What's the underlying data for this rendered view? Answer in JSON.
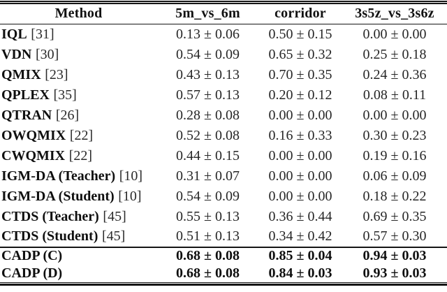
{
  "colors": {
    "background": "#ffffff",
    "text": "#111111",
    "rule": "#151515"
  },
  "table": {
    "columns": [
      "Method",
      "5m_vs_6m",
      "corridor",
      "3s5z_vs_3s6z"
    ],
    "rows": [
      {
        "method": "IQL",
        "cite": "[31]",
        "values": [
          "0.13 ± 0.06",
          "0.50 ± 0.15",
          "0.00 ± 0.00"
        ],
        "bold": false,
        "rule_above": false
      },
      {
        "method": "VDN",
        "cite": "[30]",
        "values": [
          "0.54 ± 0.09",
          "0.65 ± 0.32",
          "0.25 ± 0.18"
        ],
        "bold": false,
        "rule_above": false
      },
      {
        "method": "QMIX",
        "cite": "[23]",
        "values": [
          "0.43 ± 0.13",
          "0.70 ± 0.35",
          "0.24 ± 0.36"
        ],
        "bold": false,
        "rule_above": false
      },
      {
        "method": "QPLEX",
        "cite": "[35]",
        "values": [
          "0.57 ± 0.13",
          "0.20 ± 0.12",
          "0.08 ± 0.11"
        ],
        "bold": false,
        "rule_above": false
      },
      {
        "method": "QTRAN",
        "cite": "[26]",
        "values": [
          "0.28 ± 0.08",
          "0.00 ± 0.00",
          "0.00 ± 0.00"
        ],
        "bold": false,
        "rule_above": false
      },
      {
        "method": "OWQMIX",
        "cite": "[22]",
        "values": [
          "0.52 ± 0.08",
          "0.16 ± 0.33",
          "0.30 ± 0.23"
        ],
        "bold": false,
        "rule_above": false
      },
      {
        "method": "CWQMIX",
        "cite": "[22]",
        "values": [
          "0.44 ± 0.15",
          "0.00 ± 0.00",
          "0.19 ± 0.16"
        ],
        "bold": false,
        "rule_above": false
      },
      {
        "method": "IGM-DA (Teacher)",
        "cite": "[10]",
        "values": [
          "0.31 ± 0.07",
          "0.00 ± 0.00",
          "0.06 ± 0.09"
        ],
        "bold": false,
        "rule_above": false
      },
      {
        "method": "IGM-DA (Student)",
        "cite": "[10]",
        "values": [
          "0.54 ± 0.09",
          "0.00 ± 0.00",
          "0.18 ± 0.22"
        ],
        "bold": false,
        "rule_above": false
      },
      {
        "method": "CTDS (Teacher)",
        "cite": "[45]",
        "values": [
          "0.55 ± 0.13",
          "0.36 ± 0.44",
          "0.69 ± 0.35"
        ],
        "bold": false,
        "rule_above": false
      },
      {
        "method": "CTDS (Student)",
        "cite": "[45]",
        "values": [
          "0.51 ± 0.13",
          "0.34 ± 0.42",
          "0.57 ± 0.30"
        ],
        "bold": false,
        "rule_above": false
      },
      {
        "method": "CADP (C)",
        "cite": "",
        "values": [
          "0.68 ± 0.08",
          "0.85 ± 0.04",
          "0.94 ± 0.03"
        ],
        "bold": true,
        "rule_above": true
      },
      {
        "method": "CADP (D)",
        "cite": "",
        "values": [
          "0.68 ± 0.08",
          "0.84 ± 0.03",
          "0.93 ± 0.03"
        ],
        "bold": true,
        "rule_above": false
      }
    ]
  }
}
